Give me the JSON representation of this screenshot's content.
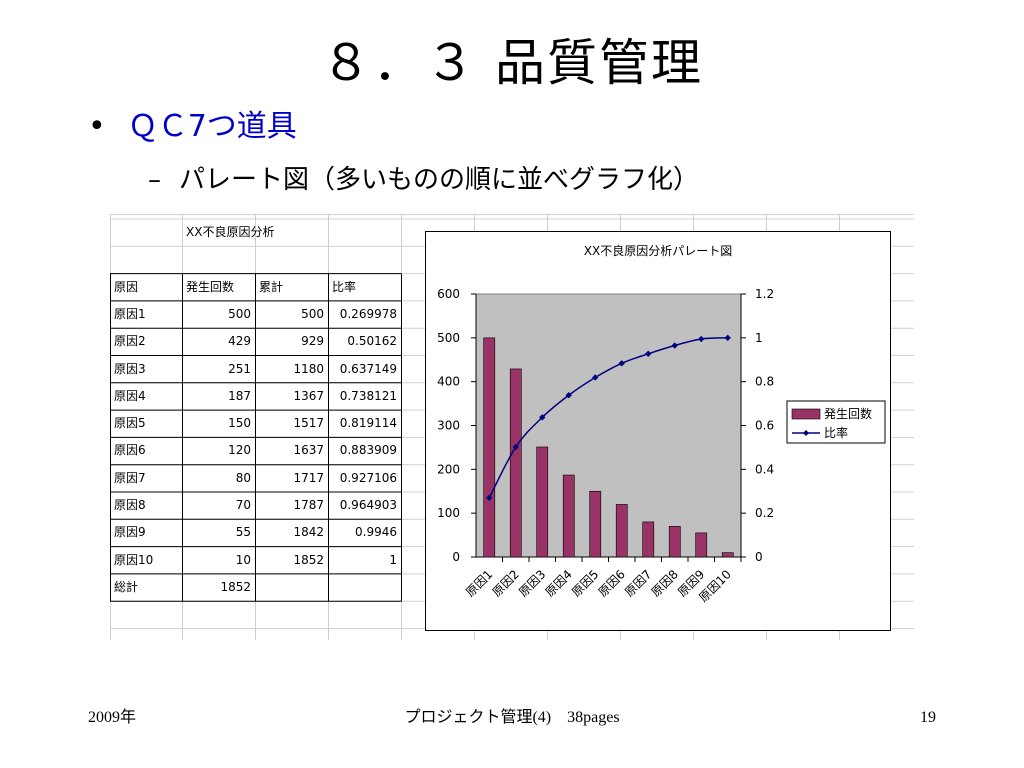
{
  "slide": {
    "title": "８．３ 品質管理",
    "bullet_symbol": "•",
    "bullet": "ＱＣ7つ道具",
    "sub_dash": "–",
    "sub_bullet": "パレート図（多いものの順に並べグラフ化）"
  },
  "table": {
    "title": "XX不良原因分析",
    "headers": [
      "原因",
      "発生回数",
      "累計",
      "比率"
    ],
    "rows": [
      [
        "原因1",
        "500",
        "500",
        "0.269978"
      ],
      [
        "原因2",
        "429",
        "929",
        "0.50162"
      ],
      [
        "原因3",
        "251",
        "1180",
        "0.637149"
      ],
      [
        "原因4",
        "187",
        "1367",
        "0.738121"
      ],
      [
        "原因5",
        "150",
        "1517",
        "0.819114"
      ],
      [
        "原因6",
        "120",
        "1637",
        "0.883909"
      ],
      [
        "原因7",
        "80",
        "1717",
        "0.927106"
      ],
      [
        "原因8",
        "70",
        "1787",
        "0.964903"
      ],
      [
        "原因9",
        "55",
        "1842",
        "0.9946"
      ],
      [
        "原因10",
        "10",
        "1852",
        "1"
      ]
    ],
    "total_label": "総計",
    "total_value": "1852"
  },
  "chart_data": {
    "type": "bar",
    "title": "XX不良原因分析パレート図",
    "categories": [
      "原因1",
      "原因2",
      "原因3",
      "原因4",
      "原因5",
      "原因6",
      "原因7",
      "原因8",
      "原因9",
      "原因10"
    ],
    "series": [
      {
        "name": "発生回数",
        "type": "bar",
        "axis": "left",
        "color": "#993366",
        "values": [
          500,
          429,
          251,
          187,
          150,
          120,
          80,
          70,
          55,
          10
        ]
      },
      {
        "name": "比率",
        "type": "line",
        "axis": "right",
        "color": "#000080",
        "values": [
          0.269978,
          0.50162,
          0.637149,
          0.738121,
          0.819114,
          0.883909,
          0.927106,
          0.964903,
          0.9946,
          1
        ]
      }
    ],
    "y_left": {
      "min": 0,
      "max": 600,
      "ticks": [
        "0",
        "100",
        "200",
        "300",
        "400",
        "500",
        "600"
      ]
    },
    "y_right": {
      "min": 0,
      "max": 1.2,
      "ticks": [
        "0",
        "0.2",
        "0.4",
        "0.6",
        "0.8",
        "1",
        "1.2"
      ]
    },
    "plot_background": "#c0c0c0",
    "legend_position": "right"
  },
  "footer": {
    "left": "2009年",
    "center": "プロジェクト管理(4)　38pages",
    "right": "19"
  }
}
